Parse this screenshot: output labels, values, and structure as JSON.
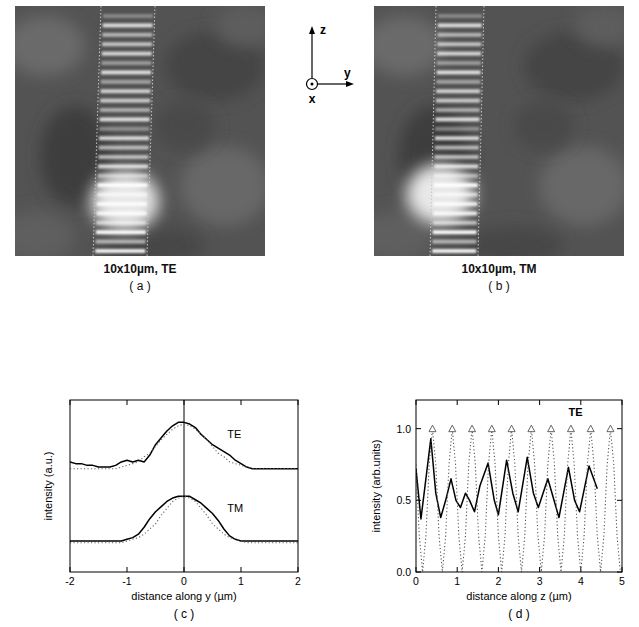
{
  "coordinate_axes": {
    "z": "z",
    "y": "y",
    "x": "x"
  },
  "chart_data": [
    {
      "type": "image",
      "caption": "10x10µm, TE",
      "panel": "( a )"
    },
    {
      "type": "image",
      "caption": "10x10µm, TM",
      "panel": "( b )"
    },
    {
      "type": "line",
      "panel": "( c )",
      "x_label": "distance along y (µm)",
      "y_label": "intensity (a.u.)",
      "xlim": [
        -2,
        2
      ],
      "ylim": [
        0,
        1
      ],
      "xticks": [
        -2,
        -1,
        0,
        1,
        2
      ],
      "tick_labels": "x",
      "reference_x": 0,
      "x": [
        -2,
        -1.9,
        -1.8,
        -1.7,
        -1.6,
        -1.5,
        -1.4,
        -1.3,
        -1.2,
        -1.1,
        -1,
        -0.9,
        -0.8,
        -0.7,
        -0.6,
        -0.5,
        -0.4,
        -0.3,
        -0.2,
        -0.1,
        0,
        0.1,
        0.2,
        0.3,
        0.4,
        0.5,
        0.6,
        0.7,
        0.8,
        0.9,
        1,
        1.1,
        1.2,
        1.3,
        1.4,
        1.5,
        1.6,
        1.7,
        1.8,
        1.9,
        2
      ],
      "series": [
        {
          "name": "TE",
          "color": "#000000",
          "line_style": "solid",
          "values": [
            0.64,
            0.63,
            0.63,
            0.62,
            0.62,
            0.61,
            0.61,
            0.61,
            0.62,
            0.64,
            0.65,
            0.64,
            0.65,
            0.64,
            0.68,
            0.74,
            0.78,
            0.82,
            0.85,
            0.87,
            0.87,
            0.86,
            0.84,
            0.8,
            0.77,
            0.74,
            0.72,
            0.7,
            0.68,
            0.65,
            0.63,
            0.61,
            0.6,
            0.6,
            0.6,
            0.6,
            0.6,
            0.6,
            0.6,
            0.6,
            0.6
          ]
        },
        {
          "color": "#666666",
          "line_style": "dotted",
          "values": [
            0.6,
            0.6,
            0.6,
            0.6,
            0.6,
            0.6,
            0.6,
            0.6,
            0.6,
            0.61,
            0.62,
            0.63,
            0.64,
            0.67,
            0.69,
            0.73,
            0.77,
            0.8,
            0.83,
            0.85,
            0.86,
            0.85,
            0.83,
            0.8,
            0.77,
            0.73,
            0.69,
            0.67,
            0.64,
            0.63,
            0.62,
            0.61,
            0.6,
            0.6,
            0.6,
            0.6,
            0.6,
            0.6,
            0.6,
            0.6,
            0.6
          ]
        },
        {
          "name": "TM",
          "color": "#000000",
          "line_style": "solid",
          "values": [
            0.18,
            0.18,
            0.18,
            0.18,
            0.18,
            0.18,
            0.18,
            0.18,
            0.18,
            0.18,
            0.19,
            0.2,
            0.22,
            0.26,
            0.31,
            0.35,
            0.38,
            0.41,
            0.43,
            0.44,
            0.44,
            0.44,
            0.42,
            0.4,
            0.37,
            0.34,
            0.3,
            0.25,
            0.21,
            0.19,
            0.18,
            0.18,
            0.18,
            0.18,
            0.18,
            0.18,
            0.18,
            0.18,
            0.18,
            0.18,
            0.18
          ]
        },
        {
          "color": "#666666",
          "line_style": "dotted",
          "values": [
            0.17,
            0.17,
            0.17,
            0.17,
            0.17,
            0.17,
            0.17,
            0.17,
            0.17,
            0.17,
            0.18,
            0.19,
            0.2,
            0.22,
            0.25,
            0.28,
            0.33,
            0.37,
            0.41,
            0.43,
            0.44,
            0.43,
            0.41,
            0.37,
            0.33,
            0.28,
            0.25,
            0.22,
            0.2,
            0.19,
            0.18,
            0.17,
            0.17,
            0.17,
            0.17,
            0.17,
            0.17,
            0.17,
            0.17,
            0.17,
            0.17
          ]
        }
      ]
    },
    {
      "type": "line",
      "panel": "( d )",
      "x_label": "distance along z (µm)",
      "y_label": "intensity (arb.units)",
      "annotations": [
        "TE"
      ],
      "xlim": [
        0,
        5
      ],
      "ylim": [
        0,
        1.2
      ],
      "xticks": [
        0,
        1,
        2,
        3,
        4,
        5
      ],
      "yticks": [
        {
          "value": 0,
          "label": "0.0"
        },
        {
          "value": 0.5,
          "label": "0.5"
        },
        {
          "value": 1,
          "label": "1.0"
        }
      ],
      "series": [
        {
          "color": "#000000",
          "line_style": "solid",
          "marker": "none",
          "x": [
            0,
            0.12,
            0.24,
            0.36,
            0.48,
            0.6,
            0.72,
            0.85,
            0.97,
            1.08,
            1.2,
            1.3,
            1.42,
            1.55,
            1.75,
            1.9,
            2,
            2.2,
            2.35,
            2.48,
            2.7,
            2.85,
            2.97,
            3.2,
            3.35,
            3.47,
            3.7,
            3.85,
            3.97,
            4.2,
            4.4
          ],
          "values": [
            0.72,
            0.37,
            0.65,
            0.93,
            0.55,
            0.38,
            0.5,
            0.65,
            0.5,
            0.45,
            0.55,
            0.5,
            0.42,
            0.6,
            0.76,
            0.5,
            0.4,
            0.78,
            0.55,
            0.42,
            0.8,
            0.55,
            0.45,
            0.65,
            0.5,
            0.38,
            0.73,
            0.5,
            0.42,
            0.74,
            0.58
          ]
        },
        {
          "color": "#555555",
          "line_style": "dotted",
          "marker": "none",
          "x": [
            0,
            0.08,
            0.16,
            0.24,
            0.32,
            0.4,
            0.48,
            0.56,
            0.64,
            0.72,
            0.8,
            0.88,
            0.96,
            1.04,
            1.12,
            1.2,
            1.28,
            1.36,
            1.44,
            1.52,
            1.6,
            1.68,
            1.76,
            1.84,
            1.92,
            2,
            2.08,
            2.16,
            2.24,
            2.32,
            2.4,
            2.48,
            2.56,
            2.64,
            2.72,
            2.8,
            2.88,
            2.96,
            3.04,
            3.12,
            3.2,
            3.28,
            3.36,
            3.44,
            3.52,
            3.6,
            3.68,
            3.76,
            3.84,
            3.92,
            4,
            4.08,
            4.16,
            4.24,
            4.32,
            4.4,
            4.48,
            4.56,
            4.64,
            4.72,
            4.8,
            4.88,
            4.96
          ],
          "values": [
            0.75,
            0.25,
            0,
            0.25,
            0.75,
            1,
            0.75,
            0.25,
            0,
            0.25,
            0.75,
            1,
            0.75,
            0.25,
            0,
            0.25,
            0.75,
            1,
            0.75,
            0.25,
            0,
            0.25,
            0.75,
            1,
            0.75,
            0.25,
            0,
            0.25,
            0.75,
            1,
            0.75,
            0.25,
            0,
            0.25,
            0.75,
            1,
            0.75,
            0.25,
            0,
            0.25,
            0.75,
            1,
            0.75,
            0.25,
            0,
            0.25,
            0.75,
            1,
            0.75,
            0.25,
            0,
            0.25,
            0.75,
            1,
            0.75,
            0.25,
            0,
            0.25,
            0.75,
            1,
            0.75,
            0.25,
            0
          ]
        },
        {
          "type": "scatter",
          "color": "#555555",
          "line_style": "none",
          "marker": "triangle",
          "x": [
            0.4,
            0.88,
            1.36,
            1.84,
            2.32,
            2.8,
            3.28,
            3.76,
            4.24,
            4.72
          ],
          "values": [
            1,
            1,
            1,
            1,
            1,
            1,
            1,
            1,
            1,
            1
          ]
        }
      ]
    }
  ]
}
